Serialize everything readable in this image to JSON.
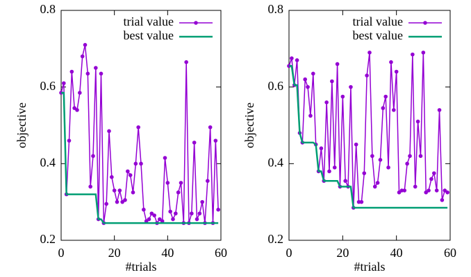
{
  "chart_data": [
    {
      "type": "line",
      "xlabel": "#trials",
      "ylabel": "objective",
      "x": [
        0,
        1,
        2,
        3,
        4,
        5,
        6,
        7,
        8,
        9,
        10,
        11,
        12,
        13,
        14,
        15,
        16,
        17,
        18,
        19,
        20,
        21,
        22,
        23,
        24,
        25,
        26,
        27,
        28,
        29,
        30,
        31,
        32,
        33,
        34,
        35,
        36,
        37,
        38,
        39,
        40,
        41,
        42,
        43,
        44,
        45,
        46,
        47,
        48,
        49,
        50,
        51,
        52,
        53,
        54,
        55,
        56,
        57,
        58,
        59
      ],
      "series": [
        {
          "name": "trial value",
          "color": "#9400d3",
          "marker": true,
          "values": [
            0.585,
            0.61,
            0.32,
            0.46,
            0.64,
            0.545,
            0.54,
            0.585,
            0.68,
            0.71,
            0.635,
            0.34,
            0.42,
            0.65,
            0.255,
            0.635,
            0.245,
            0.295,
            0.485,
            0.365,
            0.33,
            0.3,
            0.33,
            0.3,
            0.305,
            0.38,
            0.37,
            0.325,
            0.4,
            0.495,
            0.4,
            0.28,
            0.25,
            0.255,
            0.27,
            0.265,
            0.245,
            0.255,
            0.25,
            0.415,
            0.35,
            0.275,
            0.255,
            0.27,
            0.325,
            0.35,
            0.245,
            0.665,
            0.245,
            0.27,
            0.455,
            0.255,
            0.27,
            0.3,
            0.245,
            0.355,
            0.495,
            0.245,
            0.46,
            0.28
          ]
        },
        {
          "name": "best value",
          "color": "#009e73",
          "marker": false,
          "values": [
            0.585,
            0.585,
            0.32,
            0.32,
            0.32,
            0.32,
            0.32,
            0.32,
            0.32,
            0.32,
            0.32,
            0.32,
            0.32,
            0.32,
            0.255,
            0.255,
            0.245,
            0.245,
            0.245,
            0.245,
            0.245,
            0.245,
            0.245,
            0.245,
            0.245,
            0.245,
            0.245,
            0.245,
            0.245,
            0.245,
            0.245,
            0.245,
            0.245,
            0.245,
            0.245,
            0.245,
            0.245,
            0.245,
            0.245,
            0.245,
            0.245,
            0.245,
            0.245,
            0.245,
            0.245,
            0.245,
            0.245,
            0.245,
            0.245,
            0.245,
            0.245,
            0.245,
            0.245,
            0.245,
            0.245,
            0.245,
            0.245,
            0.245,
            0.245,
            0.245
          ]
        }
      ],
      "xlim": [
        0,
        60
      ],
      "xticks": [
        0,
        20,
        40,
        60
      ],
      "ylim": [
        0.2,
        0.8
      ],
      "yticks": [
        0.2,
        0.4,
        0.6,
        0.8
      ],
      "legend": "top-right"
    },
    {
      "type": "line",
      "xlabel": "#trials",
      "ylabel": "objective",
      "x": [
        0,
        1,
        2,
        3,
        4,
        5,
        6,
        7,
        8,
        9,
        10,
        11,
        12,
        13,
        14,
        15,
        16,
        17,
        18,
        19,
        20,
        21,
        22,
        23,
        24,
        25,
        26,
        27,
        28,
        29,
        30,
        31,
        32,
        33,
        34,
        35,
        36,
        37,
        38,
        39,
        40,
        41,
        42,
        43,
        44,
        45,
        46,
        47,
        48,
        49,
        50,
        51,
        52,
        53,
        54,
        55,
        56,
        57,
        58,
        59
      ],
      "series": [
        {
          "name": "trial value",
          "color": "#9400d3",
          "marker": true,
          "values": [
            0.655,
            0.675,
            0.605,
            0.67,
            0.48,
            0.455,
            0.62,
            0.6,
            0.525,
            0.635,
            0.45,
            0.38,
            0.44,
            0.355,
            0.56,
            0.38,
            0.615,
            0.39,
            0.66,
            0.34,
            0.575,
            0.355,
            0.34,
            0.6,
            0.285,
            0.45,
            0.3,
            0.3,
            0.375,
            0.63,
            0.69,
            0.42,
            0.34,
            0.35,
            0.41,
            0.545,
            0.575,
            0.39,
            0.665,
            0.54,
            0.64,
            0.325,
            0.33,
            0.33,
            0.4,
            0.42,
            0.685,
            0.34,
            0.51,
            0.42,
            0.69,
            0.325,
            0.33,
            0.36,
            0.375,
            0.33,
            0.54,
            0.305,
            0.33,
            0.325
          ]
        },
        {
          "name": "best value",
          "color": "#009e73",
          "marker": false,
          "values": [
            0.655,
            0.655,
            0.605,
            0.605,
            0.48,
            0.455,
            0.455,
            0.455,
            0.455,
            0.455,
            0.45,
            0.38,
            0.38,
            0.355,
            0.355,
            0.355,
            0.355,
            0.355,
            0.355,
            0.34,
            0.34,
            0.34,
            0.34,
            0.34,
            0.285,
            0.285,
            0.285,
            0.285,
            0.285,
            0.285,
            0.285,
            0.285,
            0.285,
            0.285,
            0.285,
            0.285,
            0.285,
            0.285,
            0.285,
            0.285,
            0.285,
            0.285,
            0.285,
            0.285,
            0.285,
            0.285,
            0.285,
            0.285,
            0.285,
            0.285,
            0.285,
            0.285,
            0.285,
            0.285,
            0.285,
            0.285,
            0.285,
            0.285,
            0.285,
            0.285
          ]
        }
      ],
      "xlim": [
        0,
        60
      ],
      "xticks": [
        0,
        20,
        40,
        60
      ],
      "ylim": [
        0.2,
        0.8
      ],
      "yticks": [
        0.2,
        0.4,
        0.6,
        0.8
      ],
      "legend": "top-right"
    }
  ]
}
